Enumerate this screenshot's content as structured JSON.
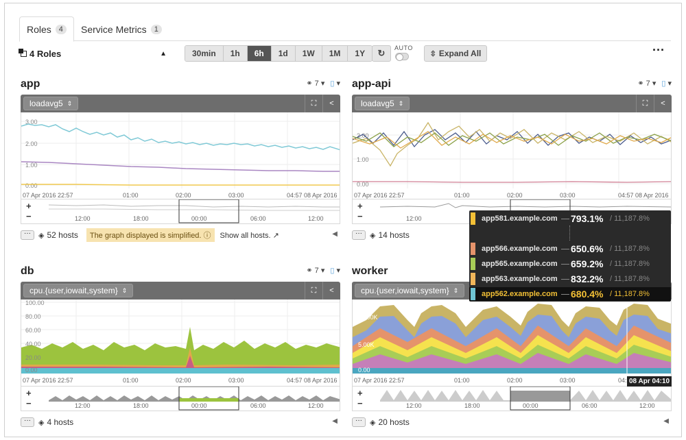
{
  "tabs": [
    {
      "label": "Roles",
      "count": "4"
    },
    {
      "label": "Service Metrics",
      "count": "1"
    }
  ],
  "toolbar": {
    "roles_label": "4 Roles",
    "ranges": [
      "30min",
      "1h",
      "6h",
      "1d",
      "1W",
      "1M",
      "1Y"
    ],
    "active_range": "6h",
    "auto_label": "AUTO",
    "expand_label": "Expand All",
    "more_label": "···"
  },
  "colors": {
    "header_gray": "#6d6d6d",
    "active_range": "#555555",
    "highlight": "#f3c036",
    "warning_bg": "#f7e3b0"
  },
  "panels": [
    {
      "title": "app",
      "host_filter_count": "7",
      "metric": "loadavg5",
      "hosts": "52 hosts",
      "notice": "The graph displayed is simplified.",
      "show_all": "Show all hosts.",
      "y_ticks": [
        "3.00",
        "2.00",
        "1.00",
        "0.00"
      ],
      "x_labels": [
        "07 Apr 2016 22:57",
        "01:00",
        "02:00",
        "03:00",
        "04:57 08 Apr 2016"
      ],
      "nav_labels": [
        "12:00",
        "18:00",
        "00:00",
        "06:00",
        "12:00"
      ]
    },
    {
      "title": "app-api",
      "host_filter_count": "7",
      "metric": "loadavg5",
      "hosts": "14 hosts",
      "y_ticks": [
        "2.00",
        "1.00",
        "0.00"
      ],
      "x_labels": [
        "07 Apr 2016 22:57",
        "01:00",
        "02:00",
        "03:00",
        "04:57 08 Apr 2016"
      ],
      "nav_labels": [
        "12:00"
      ]
    },
    {
      "title": "db",
      "host_filter_count": "7",
      "metric": "cpu.{user,iowait,system}",
      "hosts": "4 hosts",
      "y_ticks": [
        "100.00",
        "80.00",
        "60.00",
        "40.00",
        "20.00",
        "0.00"
      ],
      "x_labels": [
        "07 Apr 2016 22:57",
        "01:00",
        "02:00",
        "03:00",
        "04:57 08 Apr 2016"
      ],
      "nav_labels": [
        "12:00",
        "18:00",
        "00:00",
        "06:00",
        "12:00"
      ]
    },
    {
      "title": "worker",
      "metric": "cpu.{user,iowait,system}",
      "hosts": "20 hosts",
      "y_ticks": [
        "10.00K",
        "5.00K",
        "0.00"
      ],
      "x_labels": [
        "07 Apr 2016 22:57",
        "01:00",
        "02:00",
        "03:00",
        "04:"
      ],
      "nav_labels": [
        "12:00",
        "18:00",
        "00:00",
        "06:00",
        "12:00"
      ],
      "hover_date": "08 Apr 04:10"
    }
  ],
  "tooltip": {
    "rows": [
      {
        "host": "app581.example.com",
        "value": "793.1%",
        "total": "/ 11,187.8%",
        "color": "#f3c036"
      },
      {
        "host": "app566.example.com",
        "value": "650.6%",
        "total": "/ 11,187.8%",
        "color": "#e5936b"
      },
      {
        "host": "app565.example.com",
        "value": "659.2%",
        "total": "/ 11,187.8%",
        "color": "#a8cd57"
      },
      {
        "host": "app563.example.com",
        "value": "832.2%",
        "total": "/ 11,187.8%",
        "color": "#f0b65a"
      },
      {
        "host": "app562.example.com",
        "value": "680.4%",
        "total": "/ 11,187.8%",
        "color": "#6fc4d3"
      }
    ]
  }
}
